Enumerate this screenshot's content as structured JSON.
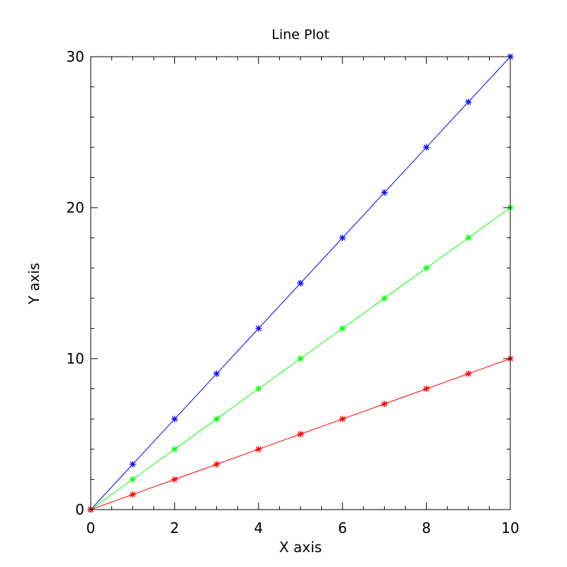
{
  "chart_data": {
    "type": "line",
    "title": "Line Plot",
    "xlabel": "X axis",
    "ylabel": "Y axis",
    "xlim": [
      0,
      10
    ],
    "ylim": [
      0,
      30
    ],
    "x_ticks": [
      "0",
      "2",
      "4",
      "6",
      "8",
      "10"
    ],
    "y_ticks": [
      "0",
      "10",
      "20",
      "30"
    ],
    "grid": false,
    "marker": "asterisk",
    "x": [
      0,
      1,
      2,
      3,
      4,
      5,
      6,
      7,
      8,
      9,
      10
    ],
    "series": [
      {
        "color": "#0000ff",
        "values": [
          0,
          3,
          6,
          9,
          12,
          15,
          18,
          21,
          24,
          27,
          30
        ]
      },
      {
        "color": "#00ff00",
        "values": [
          0,
          2,
          4,
          6,
          8,
          10,
          12,
          14,
          16,
          18,
          20
        ]
      },
      {
        "color": "#ff0000",
        "values": [
          0,
          1,
          2,
          3,
          4,
          5,
          6,
          7,
          8,
          9,
          10
        ]
      }
    ]
  }
}
